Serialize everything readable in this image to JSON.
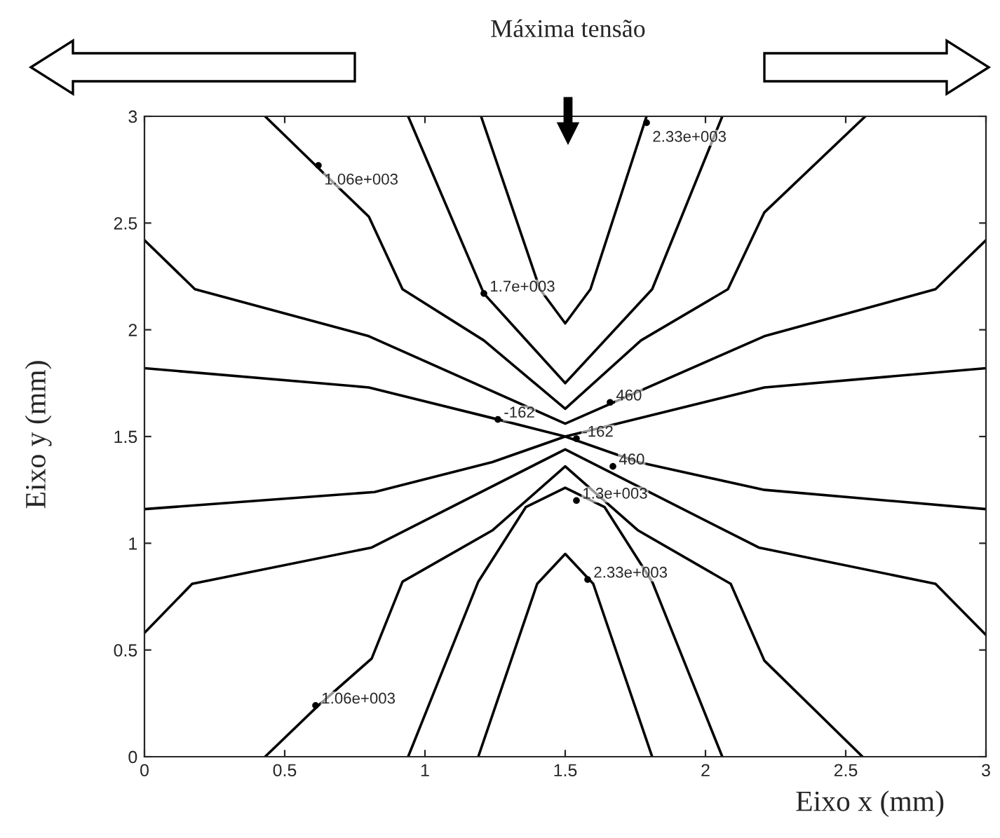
{
  "chart_data": {
    "type": "line",
    "xlabel": "Eixo x (mm)",
    "ylabel": "Eixo y (mm)",
    "xlim": [
      0,
      3
    ],
    "ylim": [
      0,
      3
    ],
    "xticks": [
      0,
      0.5,
      1,
      1.5,
      2,
      2.5,
      3
    ],
    "yticks": [
      0,
      0.5,
      1,
      1.5,
      2,
      2.5,
      3
    ],
    "grid": false,
    "series": [
      {
        "color": "#000000",
        "x": [
          0,
          0.8,
          1.26,
          1.5,
          2.21,
          3
        ],
        "values": [
          1.82,
          1.73,
          1.58,
          1.5,
          1.73,
          1.82
        ]
      },
      {
        "color": "#000000",
        "x": [
          0,
          0.18,
          0.8,
          1.5,
          2.21,
          2.82,
          3
        ],
        "values": [
          2.42,
          2.19,
          1.97,
          1.56,
          1.97,
          2.19,
          2.42
        ]
      },
      {
        "color": "#000000",
        "x": [
          0.43,
          0.61,
          0.8,
          0.92,
          1.21,
          1.5,
          1.77,
          2.08,
          2.21,
          2.57
        ],
        "values": [
          3,
          2.77,
          2.53,
          2.19,
          1.95,
          1.63,
          1.95,
          2.19,
          2.55,
          3
        ]
      },
      {
        "color": "#000000",
        "x": [
          0.94,
          1.21,
          1.5,
          1.81,
          2.06
        ],
        "values": [
          3,
          2.17,
          1.75,
          2.19,
          3
        ]
      },
      {
        "color": "#000000",
        "x": [
          1.2,
          1.41,
          1.5,
          1.59,
          1.79
        ],
        "values": [
          3,
          2.19,
          2.03,
          2.19,
          3
        ]
      },
      {
        "color": "#000000",
        "x": [
          0,
          0.82,
          1.24,
          1.5,
          1.76,
          2.21,
          3
        ],
        "values": [
          1.16,
          1.24,
          1.38,
          1.5,
          1.38,
          1.25,
          1.16
        ]
      },
      {
        "color": "#000000",
        "x": [
          0,
          0.17,
          0.81,
          1.5,
          2.19,
          2.82,
          3
        ],
        "values": [
          0.58,
          0.81,
          0.98,
          1.44,
          0.98,
          0.81,
          0.57
        ]
      },
      {
        "color": "#000000",
        "x": [
          0.43,
          0.62,
          0.81,
          0.92,
          1.24,
          1.5,
          1.76,
          2.09,
          2.21,
          2.56
        ],
        "values": [
          0,
          0.24,
          0.46,
          0.82,
          1.06,
          1.36,
          1.06,
          0.81,
          0.45,
          0
        ]
      },
      {
        "color": "#000000",
        "x": [
          0.94,
          1.19,
          1.36,
          1.5,
          1.64,
          1.81,
          2.06
        ],
        "values": [
          0,
          0.82,
          1.17,
          1.26,
          1.17,
          0.82,
          0
        ]
      },
      {
        "color": "#000000",
        "x": [
          1.19,
          1.4,
          1.5,
          1.6,
          1.81
        ],
        "values": [
          0,
          0.81,
          0.95,
          0.81,
          0
        ]
      }
    ],
    "annotations": [
      "Máxima tensão",
      {
        "text": "1.06e+003",
        "x": 0.62,
        "y": 2.77
      },
      {
        "text": "2.33e+003",
        "x": 1.79,
        "y": 2.97
      },
      {
        "text": "1.7e+003",
        "x": 1.21,
        "y": 2.17
      },
      {
        "text": "-162",
        "x": 1.26,
        "y": 1.58
      },
      {
        "text": "460",
        "x": 1.66,
        "y": 1.66
      },
      {
        "text": "-162",
        "x": 1.54,
        "y": 1.49
      },
      {
        "text": "460",
        "x": 1.67,
        "y": 1.36
      },
      {
        "text": "1.3e+003",
        "x": 1.54,
        "y": 1.2
      },
      {
        "text": "2.33e+003",
        "x": 1.58,
        "y": 0.83
      },
      {
        "text": "1.06e+003",
        "x": 0.61,
        "y": 0.24
      }
    ]
  }
}
